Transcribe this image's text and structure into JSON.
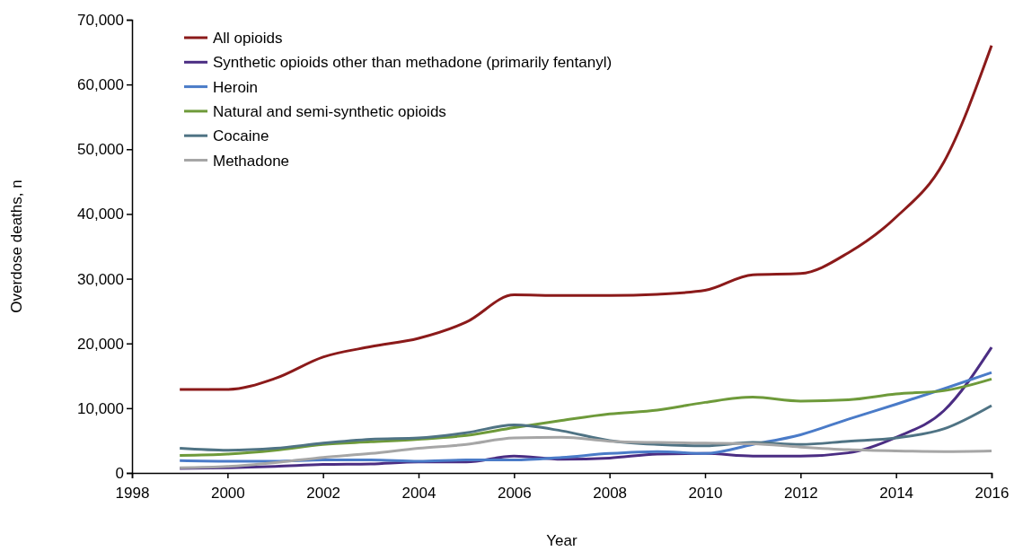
{
  "chart_data": {
    "type": "line",
    "xlabel": "Year",
    "ylabel": "Overdose deaths, n",
    "x": [
      1999,
      2000,
      2001,
      2002,
      2003,
      2004,
      2005,
      2006,
      2007,
      2008,
      2009,
      2010,
      2011,
      2012,
      2013,
      2014,
      2015,
      2016
    ],
    "series": [
      {
        "name": "All opioids",
        "color": "#8b1a1a",
        "values": [
          12900,
          12900,
          14600,
          17900,
          19500,
          20800,
          23300,
          27500,
          27400,
          27400,
          27600,
          28200,
          30600,
          30800,
          34000,
          39500,
          48000,
          66000
        ]
      },
      {
        "name": "Synthetic opioids other than methadone (primarily fentanyl)",
        "color": "#4b2d83",
        "values": [
          700,
          800,
          1000,
          1300,
          1400,
          1700,
          1700,
          2600,
          2100,
          2300,
          2900,
          3000,
          2600,
          2600,
          3100,
          5500,
          9600,
          19400
        ]
      },
      {
        "name": "Heroin",
        "color": "#4a7bc8",
        "values": [
          1900,
          1800,
          1800,
          2000,
          2000,
          1800,
          2000,
          2000,
          2400,
          3000,
          3300,
          3000,
          4400,
          5900,
          8300,
          10600,
          13000,
          15500
        ]
      },
      {
        "name": "Natural and semi-synthetic opioids",
        "color": "#6e9a3a",
        "values": [
          2700,
          2900,
          3500,
          4400,
          4800,
          5200,
          5800,
          7000,
          8100,
          9100,
          9700,
          10900,
          11700,
          11100,
          11300,
          12200,
          12700,
          14500
        ]
      },
      {
        "name": "Cocaine",
        "color": "#4f7384",
        "values": [
          3800,
          3500,
          3800,
          4600,
          5200,
          5400,
          6200,
          7400,
          6500,
          5000,
          4400,
          4200,
          4700,
          4400,
          4900,
          5400,
          6800,
          10400
        ]
      },
      {
        "name": "Methadone",
        "color": "#a6a6a6",
        "values": [
          800,
          1000,
          1600,
          2400,
          3000,
          3800,
          4400,
          5400,
          5500,
          4900,
          4700,
          4600,
          4500,
          4000,
          3600,
          3400,
          3300,
          3400
        ]
      }
    ],
    "xlim": [
      1998,
      2016
    ],
    "xticks": [
      1998,
      2000,
      2002,
      2004,
      2006,
      2008,
      2010,
      2012,
      2014,
      2016
    ],
    "ylim": [
      0,
      70000
    ],
    "yticks": [
      0,
      {
        "value": 10000,
        "label": "10,000"
      },
      {
        "value": 20000,
        "label": "20,000"
      },
      {
        "value": 30000,
        "label": "30,000"
      },
      {
        "value": 40000,
        "label": "40,000"
      },
      {
        "value": 50000,
        "label": "50,000"
      },
      {
        "value": 60000,
        "label": "60,000"
      },
      {
        "value": 70000,
        "label": "70,000"
      }
    ],
    "grid": false,
    "legend": "top left",
    "marker": "none",
    "line_style": "solid"
  }
}
